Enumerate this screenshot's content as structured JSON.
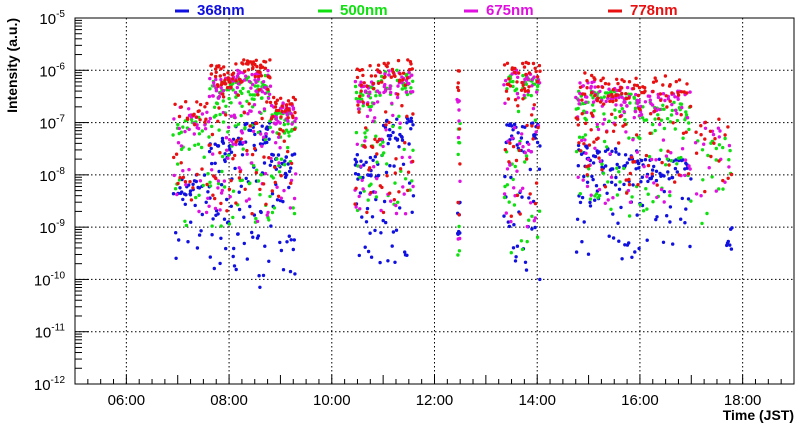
{
  "chart_data": {
    "type": "scatter",
    "title": "",
    "xlabel": "Time (JST)",
    "ylabel": "Intensity (a.u.)",
    "y_scale": "log",
    "x_unit": "hours",
    "xlim": [
      5.0,
      19.0
    ],
    "ylim": [
      1e-12,
      1e-05
    ],
    "grid": true,
    "legend_position": "top",
    "x_ticks": [
      {
        "value": 6,
        "label": "06:00"
      },
      {
        "value": 8,
        "label": "08:00"
      },
      {
        "value": 10,
        "label": "10:00"
      },
      {
        "value": 12,
        "label": "12:00"
      },
      {
        "value": 14,
        "label": "14:00"
      },
      {
        "value": 16,
        "label": "16:00"
      },
      {
        "value": 18,
        "label": "18:00"
      }
    ],
    "y_ticks": [
      {
        "exp": -12,
        "base": "10",
        "sup": "-12"
      },
      {
        "exp": -11,
        "base": "10",
        "sup": "-11"
      },
      {
        "exp": -10,
        "base": "10",
        "sup": "-10"
      },
      {
        "exp": -9,
        "base": "10",
        "sup": "-9"
      },
      {
        "exp": -8,
        "base": "10",
        "sup": "-8"
      },
      {
        "exp": -7,
        "base": "10",
        "sup": "-7"
      },
      {
        "exp": -6,
        "base": "10",
        "sup": "-6"
      },
      {
        "exp": -5,
        "base": "10",
        "sup": "-5"
      }
    ],
    "series": [
      {
        "name": "368nm",
        "color": "#1010e0",
        "segments": [
          {
            "t0": 6.9,
            "t1": 7.6,
            "log_high": -8.0,
            "log_low": -9.9,
            "n": 22
          },
          {
            "t0": 7.6,
            "t1": 8.1,
            "log_high": -7.3,
            "log_low": -9.8,
            "n": 30
          },
          {
            "t0": 8.1,
            "t1": 8.8,
            "log_high": -7.0,
            "log_low": -10.0,
            "n": 40
          },
          {
            "t0": 8.8,
            "t1": 9.3,
            "log_high": -7.6,
            "log_low": -10.1,
            "n": 26
          },
          {
            "t0": 10.45,
            "t1": 10.9,
            "log_high": -7.6,
            "log_low": -9.9,
            "n": 24
          },
          {
            "t0": 10.9,
            "t1": 11.6,
            "log_high": -6.9,
            "log_low": -10.0,
            "n": 32
          },
          {
            "t0": 12.45,
            "t1": 12.5,
            "log_high": -8.5,
            "log_low": -9.8,
            "n": 6
          },
          {
            "t0": 13.35,
            "t1": 14.05,
            "log_high": -7.0,
            "log_low": -10.0,
            "n": 36
          },
          {
            "t0": 14.75,
            "t1": 15.2,
            "log_high": -7.4,
            "log_low": -9.6,
            "n": 22
          },
          {
            "t0": 15.2,
            "t1": 16.0,
            "log_high": -7.5,
            "log_low": -9.7,
            "n": 34
          },
          {
            "t0": 16.0,
            "t1": 17.0,
            "log_high": -7.7,
            "log_low": -9.8,
            "n": 34
          },
          {
            "t0": 17.7,
            "t1": 17.8,
            "log_high": -9.0,
            "log_low": -9.4,
            "n": 5
          }
        ],
        "extra_points": [
          {
            "t": 8.6,
            "log": -10.15
          },
          {
            "t": 14.05,
            "log": -10.0
          }
        ]
      },
      {
        "name": "500nm",
        "color": "#10e010",
        "segments": [
          {
            "t0": 6.9,
            "t1": 7.6,
            "log_high": -6.9,
            "log_low": -9.0,
            "n": 22
          },
          {
            "t0": 7.6,
            "t1": 8.1,
            "log_high": -6.2,
            "log_low": -9.0,
            "n": 30
          },
          {
            "t0": 8.1,
            "t1": 8.8,
            "log_high": -6.1,
            "log_low": -9.1,
            "n": 40
          },
          {
            "t0": 8.8,
            "t1": 9.3,
            "log_high": -6.8,
            "log_low": -8.8,
            "n": 26
          },
          {
            "t0": 10.45,
            "t1": 10.9,
            "log_high": -6.3,
            "log_low": -9.0,
            "n": 24
          },
          {
            "t0": 10.9,
            "t1": 11.6,
            "log_high": -6.0,
            "log_low": -9.0,
            "n": 32
          },
          {
            "t0": 12.45,
            "t1": 12.5,
            "log_high": -7.0,
            "log_low": -9.6,
            "n": 6
          },
          {
            "t0": 13.35,
            "t1": 14.05,
            "log_high": -6.1,
            "log_low": -9.5,
            "n": 36
          },
          {
            "t0": 14.75,
            "t1": 15.2,
            "log_high": -6.4,
            "log_low": -8.5,
            "n": 22
          },
          {
            "t0": 15.2,
            "t1": 16.0,
            "log_high": -6.4,
            "log_low": -8.8,
            "n": 34
          },
          {
            "t0": 16.0,
            "t1": 17.0,
            "log_high": -6.6,
            "log_low": -8.7,
            "n": 34
          },
          {
            "t0": 17.1,
            "t1": 17.8,
            "log_high": -7.3,
            "log_low": -9.0,
            "n": 12
          }
        ],
        "extra_points": []
      },
      {
        "name": "675nm",
        "color": "#e010e0",
        "segments": [
          {
            "t0": 6.9,
            "t1": 7.6,
            "log_high": -6.7,
            "log_low": -8.8,
            "n": 22
          },
          {
            "t0": 7.6,
            "t1": 8.1,
            "log_high": -6.1,
            "log_low": -8.8,
            "n": 30
          },
          {
            "t0": 8.1,
            "t1": 8.8,
            "log_high": -6.0,
            "log_low": -9.0,
            "n": 40
          },
          {
            "t0": 8.8,
            "t1": 9.3,
            "log_high": -6.6,
            "log_low": -8.7,
            "n": 26
          },
          {
            "t0": 10.45,
            "t1": 10.9,
            "log_high": -6.2,
            "log_low": -8.8,
            "n": 24
          },
          {
            "t0": 10.9,
            "t1": 11.6,
            "log_high": -6.0,
            "log_low": -8.9,
            "n": 32
          },
          {
            "t0": 12.45,
            "t1": 12.5,
            "log_high": -6.5,
            "log_low": -9.4,
            "n": 6
          },
          {
            "t0": 13.35,
            "t1": 14.05,
            "log_high": -6.0,
            "log_low": -9.0,
            "n": 36
          },
          {
            "t0": 14.75,
            "t1": 15.2,
            "log_high": -6.2,
            "log_low": -8.4,
            "n": 22
          },
          {
            "t0": 15.2,
            "t1": 16.0,
            "log_high": -6.3,
            "log_low": -8.6,
            "n": 34
          },
          {
            "t0": 16.0,
            "t1": 17.0,
            "log_high": -6.4,
            "log_low": -8.6,
            "n": 34
          },
          {
            "t0": 17.1,
            "t1": 17.8,
            "log_high": -7.0,
            "log_low": -8.5,
            "n": 12
          }
        ],
        "extra_points": []
      },
      {
        "name": "778nm",
        "color": "#e81010",
        "segments": [
          {
            "t0": 6.9,
            "t1": 7.6,
            "log_high": -6.6,
            "log_low": -8.7,
            "n": 22
          },
          {
            "t0": 7.6,
            "t1": 8.1,
            "log_high": -5.9,
            "log_low": -8.7,
            "n": 30
          },
          {
            "t0": 8.1,
            "t1": 8.8,
            "log_high": -5.8,
            "log_low": -8.8,
            "n": 40
          },
          {
            "t0": 8.8,
            "t1": 9.3,
            "log_high": -6.5,
            "log_low": -8.5,
            "n": 26
          },
          {
            "t0": 10.45,
            "t1": 10.9,
            "log_high": -5.9,
            "log_low": -8.8,
            "n": 24
          },
          {
            "t0": 10.9,
            "t1": 11.6,
            "log_high": -5.8,
            "log_low": -8.9,
            "n": 32
          },
          {
            "t0": 12.45,
            "t1": 12.5,
            "log_high": -5.95,
            "log_low": -9.1,
            "n": 6
          },
          {
            "t0": 13.35,
            "t1": 14.05,
            "log_high": -5.85,
            "log_low": -8.8,
            "n": 36
          },
          {
            "t0": 14.75,
            "t1": 15.2,
            "log_high": -6.05,
            "log_low": -8.0,
            "n": 22
          },
          {
            "t0": 15.2,
            "t1": 16.0,
            "log_high": -6.15,
            "log_low": -8.4,
            "n": 34
          },
          {
            "t0": 16.0,
            "t1": 17.0,
            "log_high": -6.1,
            "log_low": -8.3,
            "n": 34
          },
          {
            "t0": 17.1,
            "t1": 17.8,
            "log_high": -6.9,
            "log_low": -8.4,
            "n": 12
          }
        ],
        "extra_points": []
      }
    ]
  }
}
